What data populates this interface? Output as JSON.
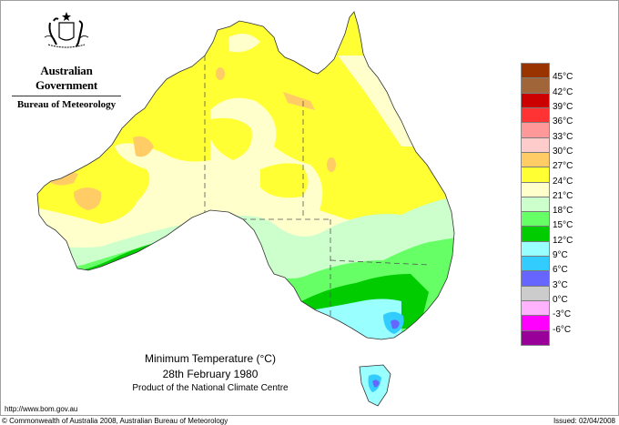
{
  "header": {
    "organization": "Australian Government",
    "agency": "Bureau of Meteorology",
    "emblem": "coat-of-arms-icon"
  },
  "map": {
    "title": "Minimum Temperature (°C)",
    "date": "28th February 1980",
    "product": "Product of the National Climate Centre",
    "region": "Australia",
    "state_borders": "dashed",
    "dominant_bands": {
      "north_and_interior": "24–27°C",
      "central": "21–24°C",
      "south_coast": "12–18°C",
      "southeast_highlands_tasmania": "3–12°C"
    }
  },
  "legend": {
    "swatches": [
      {
        "color": "#993300"
      },
      {
        "color": "#a0663a"
      },
      {
        "color": "#cc0000"
      },
      {
        "color": "#ff3333"
      },
      {
        "color": "#ff9999"
      },
      {
        "color": "#ffcccc"
      },
      {
        "color": "#ffcc66"
      },
      {
        "color": "#ffff33"
      },
      {
        "color": "#ffffcc"
      },
      {
        "color": "#ccffcc"
      },
      {
        "color": "#66ff66"
      },
      {
        "color": "#00cc00"
      },
      {
        "color": "#99ffff"
      },
      {
        "color": "#33ccff"
      },
      {
        "color": "#6666ff"
      },
      {
        "color": "#cccccc"
      },
      {
        "color": "#ffb3ff"
      },
      {
        "color": "#ff00ff"
      },
      {
        "color": "#990099"
      }
    ],
    "labels": [
      "45°C",
      "42°C",
      "39°C",
      "36°C",
      "33°C",
      "30°C",
      "27°C",
      "24°C",
      "21°C",
      "18°C",
      "15°C",
      "12°C",
      "9°C",
      "6°C",
      "3°C",
      "0°C",
      "-3°C",
      "-6°C"
    ]
  },
  "footer": {
    "url": "http://www.bom.gov.au",
    "copyright": "© Commonwealth of Australia 2008, Australian Bureau of Meteorology",
    "issued": "Issued: 02/04/2008"
  }
}
